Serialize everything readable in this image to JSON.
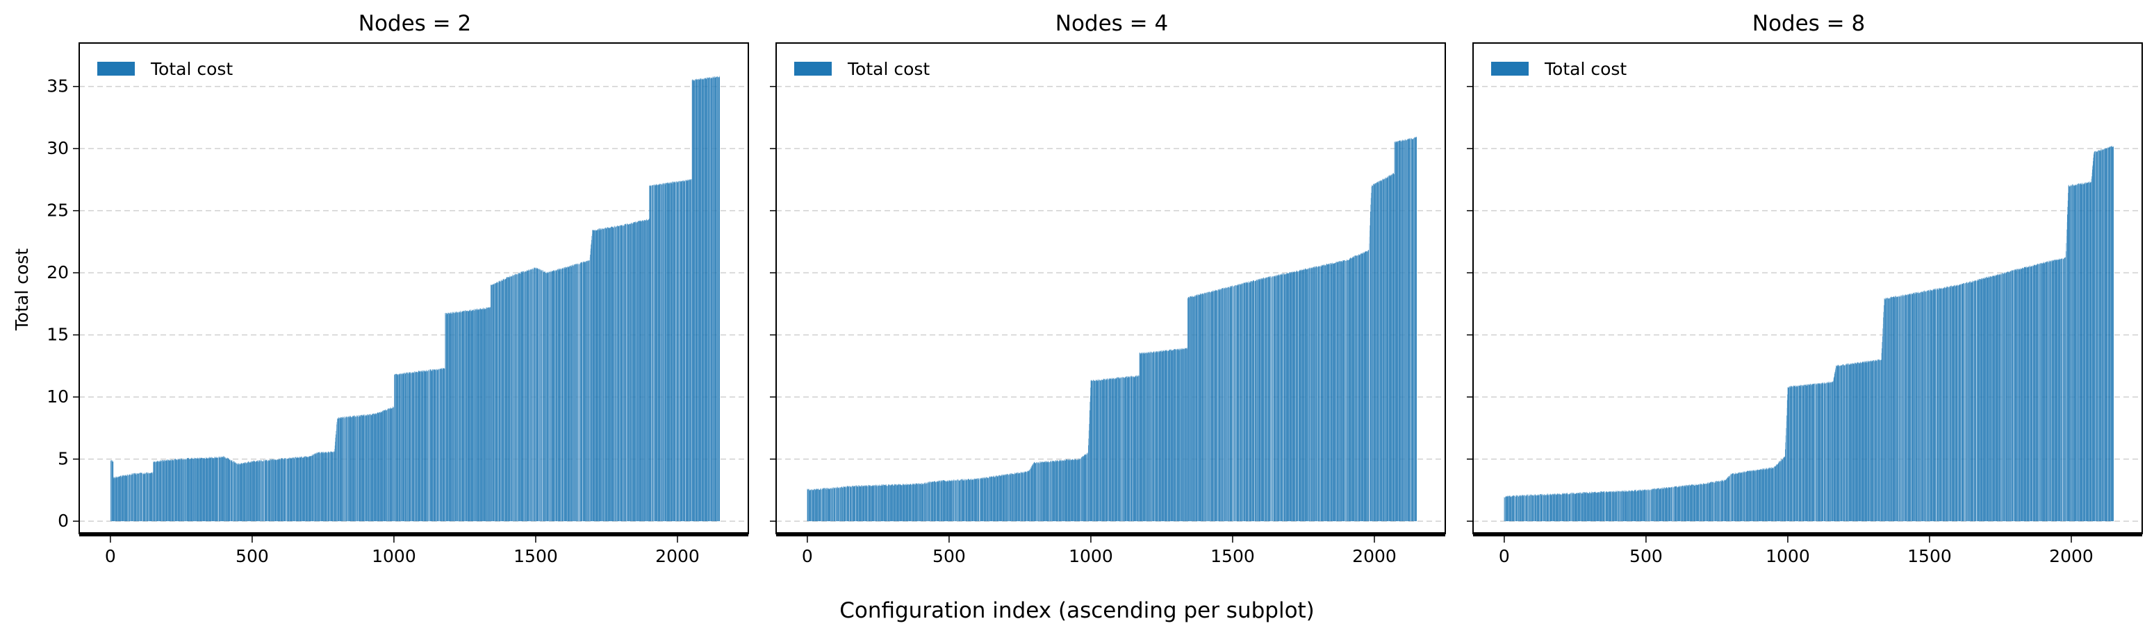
{
  "figure": {
    "xlabel": "Configuration index (ascending per subplot)",
    "ylabel": "Total cost"
  },
  "chart_data": [
    {
      "type": "bar",
      "title": "Nodes = 2",
      "legend": "Total cost",
      "legend_position": "top-left",
      "color": "#1f77b4",
      "xlim": [
        -110,
        2250
      ],
      "ylim": [
        -1,
        38.5
      ],
      "xticks": [
        0,
        500,
        1000,
        1500,
        2000
      ],
      "yticks": [
        0,
        5,
        10,
        15,
        20,
        25,
        30,
        35
      ],
      "grid": "y dashed",
      "n_bars": 2150,
      "profile_x": [
        0,
        10,
        11,
        80,
        150,
        151,
        250,
        350,
        400,
        450,
        500,
        600,
        650,
        700,
        720,
        730,
        790,
        800,
        930,
        1000,
        1001,
        1180,
        1181,
        1340,
        1341,
        1420,
        1500,
        1540,
        1620,
        1690,
        1700,
        1800,
        1900,
        1901,
        2050,
        2051,
        2149
      ],
      "profile_y": [
        4.9,
        4.8,
        3.5,
        3.8,
        3.9,
        4.8,
        5.0,
        5.1,
        5.2,
        4.6,
        4.8,
        5.0,
        5.1,
        5.2,
        5.4,
        5.5,
        5.6,
        8.3,
        8.6,
        9.2,
        11.8,
        12.3,
        16.7,
        17.2,
        19.0,
        19.8,
        20.4,
        20.0,
        20.5,
        21.0,
        23.4,
        23.8,
        24.3,
        27.0,
        27.5,
        35.5,
        35.8
      ]
    },
    {
      "type": "bar",
      "title": "Nodes = 4",
      "legend": "Total cost",
      "legend_position": "top-left",
      "color": "#1f77b4",
      "xlim": [
        -110,
        2250
      ],
      "ylim": [
        -1,
        38.5
      ],
      "xticks": [
        0,
        500,
        1000,
        1500,
        2000
      ],
      "yticks": [
        0,
        5,
        10,
        15,
        20,
        25,
        30,
        35
      ],
      "grid": "y dashed",
      "n_bars": 2150,
      "profile_x": [
        0,
        10,
        150,
        400,
        450,
        600,
        780,
        800,
        960,
        990,
        1000,
        1170,
        1171,
        1340,
        1341,
        1600,
        1900,
        1980,
        1990,
        2070,
        2071,
        2149
      ],
      "profile_y": [
        2.6,
        2.5,
        2.8,
        3.0,
        3.2,
        3.4,
        4.0,
        4.7,
        5.0,
        5.5,
        11.3,
        11.7,
        13.5,
        13.9,
        18.0,
        19.5,
        21.0,
        21.8,
        27.0,
        28.0,
        30.5,
        30.9
      ]
    },
    {
      "type": "bar",
      "title": "Nodes = 8",
      "legend": "Total cost",
      "legend_position": "top-left",
      "color": "#1f77b4",
      "xlim": [
        -110,
        2250
      ],
      "ylim": [
        -1,
        38.5
      ],
      "xticks": [
        0,
        500,
        1000,
        1500,
        2000
      ],
      "yticks": [
        0,
        5,
        10,
        15,
        20,
        25,
        30,
        35
      ],
      "grid": "y dashed",
      "n_bars": 2150,
      "profile_x": [
        0,
        10,
        300,
        500,
        700,
        780,
        800,
        950,
        990,
        1000,
        1160,
        1170,
        1330,
        1340,
        1600,
        1900,
        1980,
        1990,
        2070,
        2080,
        2149
      ],
      "profile_y": [
        1.9,
        2.0,
        2.3,
        2.5,
        3.0,
        3.3,
        3.8,
        4.3,
        5.2,
        10.8,
        11.2,
        12.5,
        13.0,
        17.9,
        19.0,
        20.8,
        21.2,
        27.0,
        27.3,
        29.7,
        30.2
      ]
    }
  ]
}
